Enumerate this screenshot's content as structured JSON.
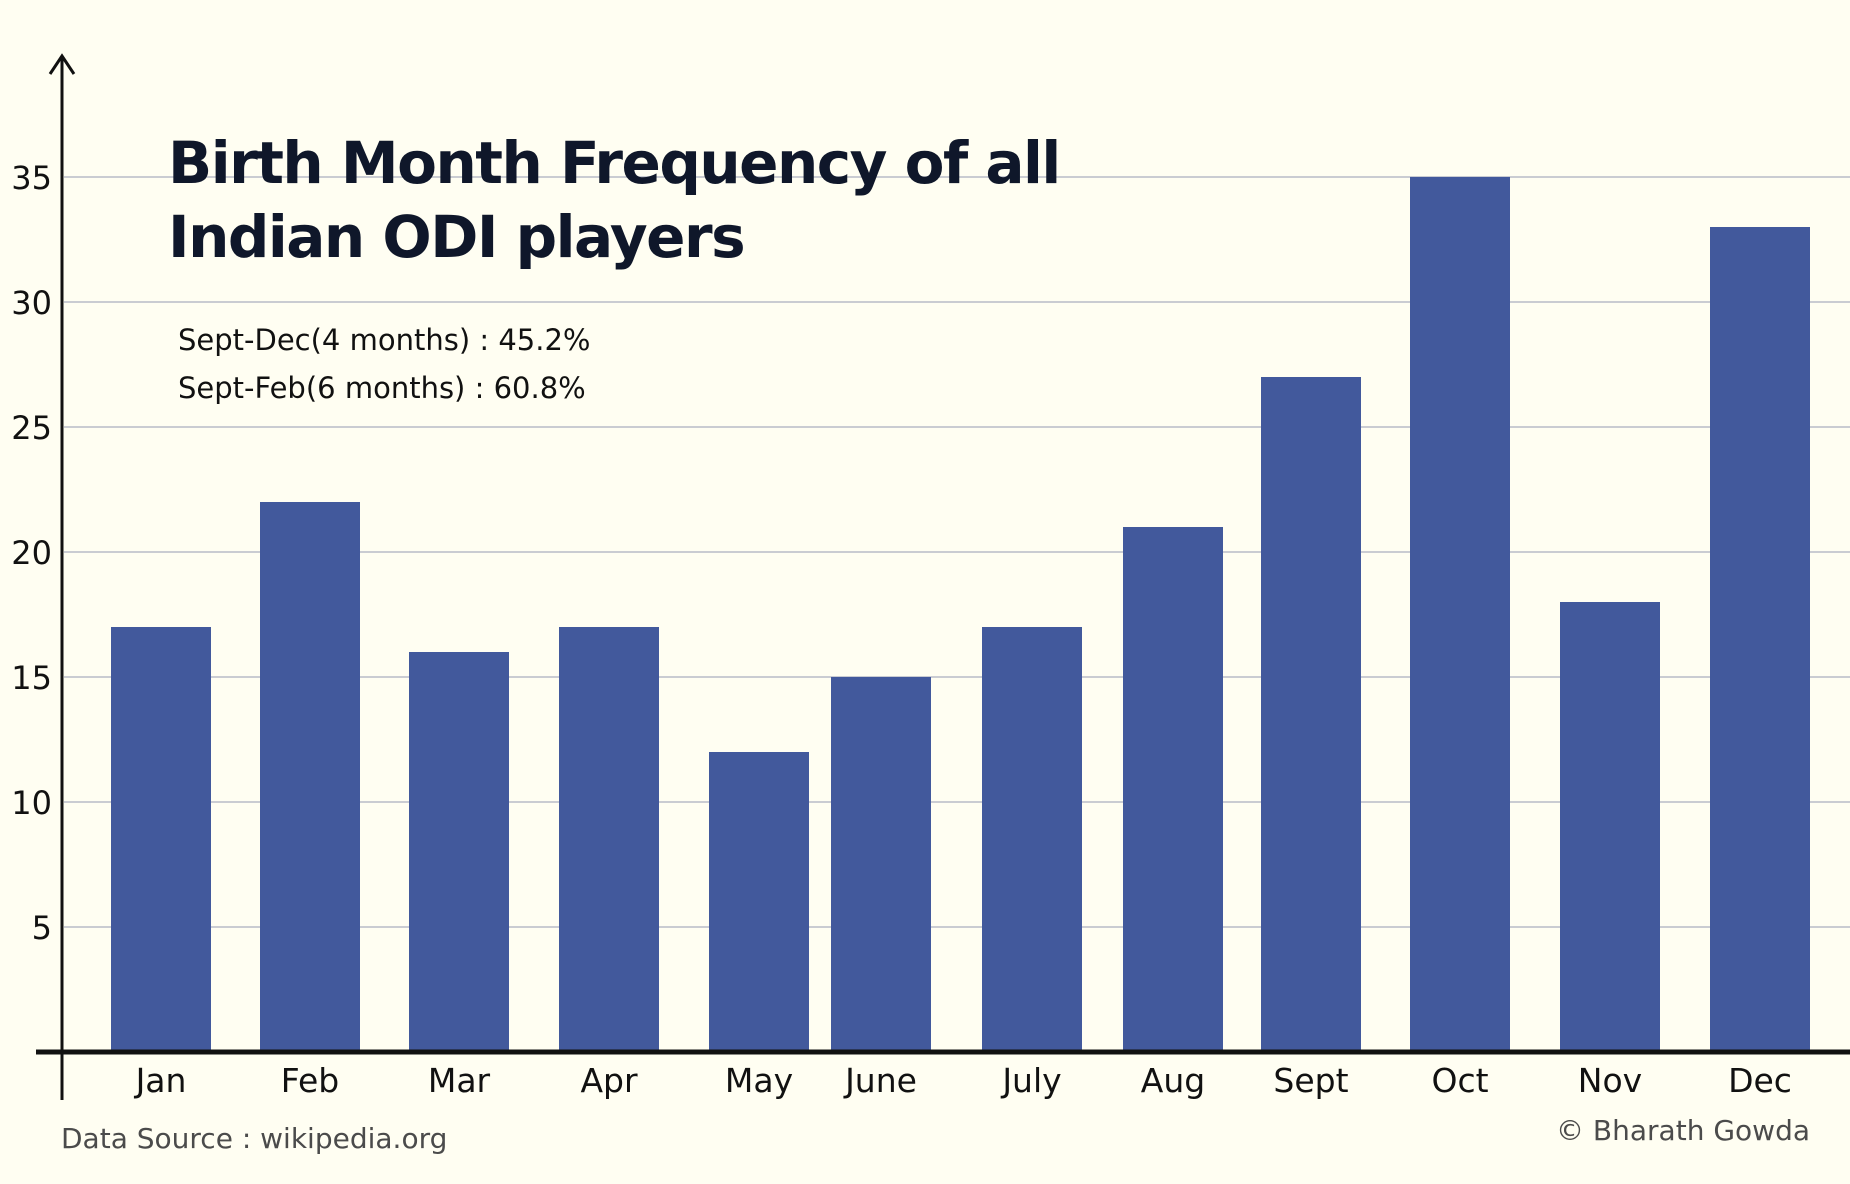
{
  "title": "Birth Month Frequency of all Indian ODI players",
  "notes": [
    "Sept-Dec(4 months) : 45.2%",
    "Sept-Feb(6 months) : 60.8%"
  ],
  "source": "Data Source : wikipedia.org",
  "credit": "© Bharath Gowda",
  "colors": {
    "background": "#fffef2",
    "bar": "#42599c",
    "grid": "#b8bcc8",
    "axis": "#111111",
    "title": "#0f172a"
  },
  "chart_data": {
    "type": "bar",
    "categories": [
      "Jan",
      "Feb",
      "Mar",
      "Apr",
      "May",
      "June",
      "July",
      "Aug",
      "Sept",
      "Oct",
      "Nov",
      "Dec"
    ],
    "values": [
      17,
      22,
      16,
      17,
      12,
      15,
      17,
      21,
      27,
      35,
      18,
      33
    ],
    "yticks": [
      5,
      10,
      15,
      20,
      25,
      30,
      35
    ],
    "ylim": [
      0,
      39
    ],
    "grid": true,
    "xlabel": "",
    "ylabel": ""
  }
}
